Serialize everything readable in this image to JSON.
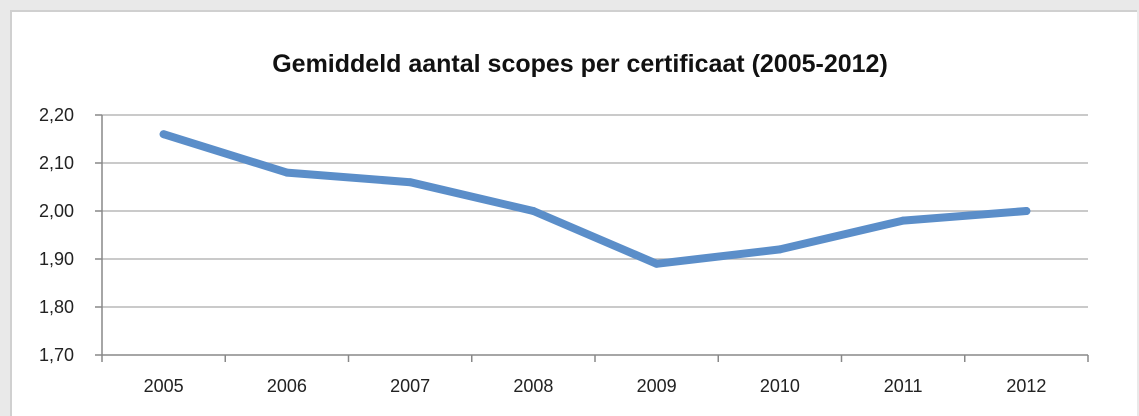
{
  "chart_data": {
    "type": "line",
    "title": "Gemiddeld aantal scopes per certificaat (2005-2012)",
    "xlabel": "",
    "ylabel": "",
    "categories": [
      "2005",
      "2006",
      "2007",
      "2008",
      "2009",
      "2010",
      "2011",
      "2012"
    ],
    "series": [
      {
        "values": [
          2.16,
          2.08,
          2.06,
          2.0,
          1.89,
          1.92,
          1.98,
          2.0
        ],
        "color": "#5b8ec9"
      }
    ],
    "ylim": [
      1.7,
      2.2
    ],
    "yticks": [
      "1,70",
      "1,80",
      "1,90",
      "2,00",
      "2,10",
      "2,20"
    ],
    "grid": true,
    "legend": "none",
    "colors": {
      "line": "#5b8ec9",
      "grid": "#b8b8b8",
      "axis": "#888888"
    }
  }
}
